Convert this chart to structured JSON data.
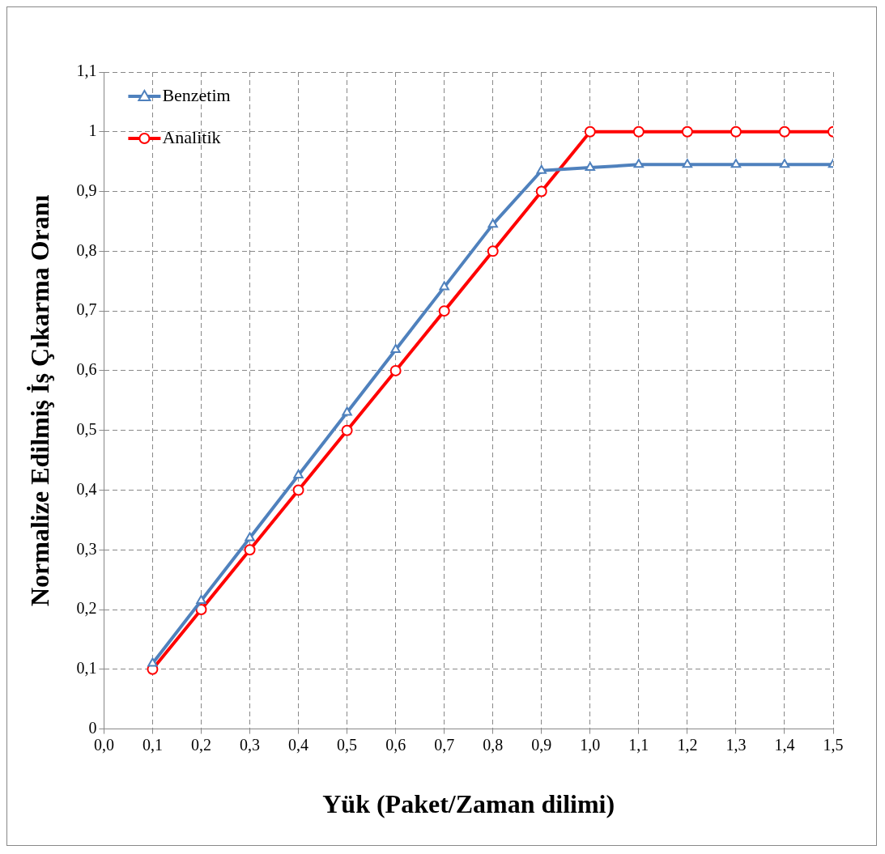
{
  "chart_data": {
    "type": "line",
    "xlabel": "Yük (Paket/Zaman dilimi)",
    "ylabel": "Normalize Edilmiş İş Çıkarma Oranı",
    "x": [
      0.1,
      0.2,
      0.3,
      0.4,
      0.5,
      0.6,
      0.7,
      0.8,
      0.9,
      1.0,
      1.1,
      1.2,
      1.3,
      1.4,
      1.5
    ],
    "series": [
      {
        "name": "Benzetim",
        "color": "#4f81bd",
        "marker": "triangle",
        "values": [
          0.11,
          0.215,
          0.32,
          0.425,
          0.53,
          0.635,
          0.74,
          0.845,
          0.935,
          0.94,
          0.945,
          0.945,
          0.945,
          0.945,
          0.945
        ]
      },
      {
        "name": "Analitik",
        "color": "#ff0000",
        "marker": "circle",
        "values": [
          0.1,
          0.2,
          0.3,
          0.4,
          0.5,
          0.6,
          0.7,
          0.8,
          0.9,
          1,
          1,
          1,
          1,
          1,
          1
        ]
      }
    ],
    "xlim": [
      0,
      1.5
    ],
    "xticks": [
      {
        "value": 0,
        "label": "0,0"
      },
      {
        "value": 0.1,
        "label": "0,1"
      },
      {
        "value": 0.2,
        "label": "0,2"
      },
      {
        "value": 0.3,
        "label": "0,3"
      },
      {
        "value": 0.4,
        "label": "0,4"
      },
      {
        "value": 0.5,
        "label": "0,5"
      },
      {
        "value": 0.6,
        "label": "0,6"
      },
      {
        "value": 0.7,
        "label": "0,7"
      },
      {
        "value": 0.8,
        "label": "0,8"
      },
      {
        "value": 0.9,
        "label": "0,9"
      },
      {
        "value": 1.0,
        "label": "1,0"
      },
      {
        "value": 1.1,
        "label": "1,1"
      },
      {
        "value": 1.2,
        "label": "1,2"
      },
      {
        "value": 1.3,
        "label": "1,3"
      },
      {
        "value": 1.4,
        "label": "1,4"
      },
      {
        "value": 1.5,
        "label": "1,5"
      }
    ],
    "ylim": [
      0,
      1.1
    ],
    "yticks": [
      0,
      {
        "value": 0.1,
        "label": "0,1"
      },
      {
        "value": 0.2,
        "label": "0,2"
      },
      {
        "value": 0.3,
        "label": "0,3"
      },
      {
        "value": 0.4,
        "label": "0,4"
      },
      {
        "value": 0.5,
        "label": "0,5"
      },
      {
        "value": 0.6,
        "label": "0,6"
      },
      {
        "value": 0.7,
        "label": "0,7"
      },
      {
        "value": 0.8,
        "label": "0,8"
      },
      {
        "value": 0.9,
        "label": "0,9"
      },
      1,
      {
        "value": 1.1,
        "label": "1,1"
      }
    ],
    "grid": true,
    "legend": "top left",
    "line_style": "solid"
  }
}
